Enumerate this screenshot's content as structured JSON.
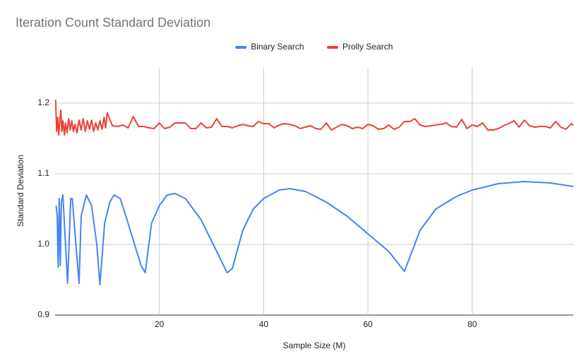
{
  "chart_data": {
    "type": "line",
    "title": "Iteration Count Standard Deviation",
    "x_label": "Sample Size (M)",
    "y_label": "Standard Deviation",
    "xlim": [
      0,
      99.4
    ],
    "ylim": [
      0.9,
      1.25
    ],
    "xticks": [
      20,
      40,
      60,
      80
    ],
    "yticks": [
      0.9,
      {
        "value": 1.0,
        "label": "1.0"
      },
      1.1,
      1.2
    ],
    "grid": true,
    "legend": "top",
    "series": [
      {
        "name": "Binary Search",
        "color": "#4285f4",
        "x": [
          0.2,
          0.4,
          0.6,
          0.8,
          1.0,
          1.2,
          1.5,
          2.0,
          2.4,
          3.0,
          3.3,
          4.0,
          4.6,
          5.0,
          6.0,
          7.0,
          8.0,
          8.6,
          9.5,
          10.5,
          11.3,
          12.5,
          14,
          16.5,
          17.3,
          18.5,
          20,
          21.5,
          23,
          25,
          28,
          31,
          33,
          34,
          36,
          38,
          40,
          43,
          45,
          48,
          52,
          56,
          60,
          64,
          67,
          70,
          73,
          77,
          80,
          85,
          90,
          95,
          99.4
        ],
        "values": [
          1.055,
          1.04,
          0.968,
          1.065,
          0.97,
          1.06,
          1.07,
          1.0,
          0.945,
          1.065,
          1.065,
          1.0,
          0.945,
          1.04,
          1.07,
          1.055,
          1.0,
          0.943,
          1.03,
          1.06,
          1.07,
          1.065,
          1.03,
          0.97,
          0.96,
          1.03,
          1.055,
          1.07,
          1.072,
          1.065,
          1.035,
          0.99,
          0.96,
          0.966,
          1.02,
          1.05,
          1.065,
          1.077,
          1.079,
          1.075,
          1.06,
          1.04,
          1.015,
          0.99,
          0.962,
          1.02,
          1.05,
          1.068,
          1.077,
          1.086,
          1.089,
          1.087,
          1.082
        ]
      },
      {
        "name": "Prolly Search",
        "color": "#ea4335",
        "x": [
          0.1,
          0.3,
          0.5,
          0.7,
          0.9,
          1.1,
          1.3,
          1.5,
          1.8,
          2.0,
          2.3,
          2.6,
          2.9,
          3.2,
          3.5,
          3.8,
          4.2,
          4.6,
          5.0,
          5.4,
          5.8,
          6.2,
          6.6,
          7.0,
          7.4,
          7.8,
          8.2,
          8.6,
          9.0,
          9.4,
          9.7,
          10,
          11,
          12,
          13,
          14,
          15,
          16,
          17,
          18,
          19,
          20,
          21,
          22,
          23,
          24,
          25,
          26,
          27,
          28,
          29,
          30,
          31,
          32,
          33,
          34,
          35,
          36,
          37,
          38,
          39,
          40,
          41,
          42,
          43,
          44,
          45,
          46,
          47,
          48,
          49,
          50,
          51,
          52,
          53,
          54,
          55,
          56,
          57,
          58,
          59,
          60,
          61,
          62,
          63,
          64,
          65,
          66,
          67,
          68,
          69,
          70,
          71,
          72,
          73,
          74,
          75,
          76,
          77,
          78,
          79,
          80,
          81,
          82,
          83,
          84,
          85,
          86,
          87,
          88,
          89,
          90,
          91,
          92,
          93,
          94,
          95,
          96,
          97,
          98,
          99,
          99.4
        ],
        "values": [
          1.205,
          1.16,
          1.18,
          1.155,
          1.175,
          1.19,
          1.16,
          1.175,
          1.155,
          1.172,
          1.158,
          1.178,
          1.162,
          1.175,
          1.16,
          1.17,
          1.158,
          1.176,
          1.162,
          1.178,
          1.16,
          1.175,
          1.163,
          1.176,
          1.16,
          1.172,
          1.162,
          1.175,
          1.163,
          1.18,
          1.165,
          1.186,
          1.168,
          1.167,
          1.169,
          1.165,
          1.181,
          1.167,
          1.167,
          1.165,
          1.164,
          1.172,
          1.164,
          1.166,
          1.172,
          1.172,
          1.172,
          1.164,
          1.164,
          1.172,
          1.165,
          1.166,
          1.178,
          1.167,
          1.167,
          1.165,
          1.168,
          1.17,
          1.168,
          1.167,
          1.174,
          1.171,
          1.171,
          1.165,
          1.169,
          1.171,
          1.17,
          1.168,
          1.164,
          1.166,
          1.168,
          1.164,
          1.163,
          1.172,
          1.162,
          1.166,
          1.17,
          1.168,
          1.164,
          1.166,
          1.164,
          1.17,
          1.168,
          1.163,
          1.164,
          1.169,
          1.163,
          1.166,
          1.174,
          1.174,
          1.178,
          1.169,
          1.167,
          1.168,
          1.169,
          1.17,
          1.172,
          1.167,
          1.166,
          1.177,
          1.164,
          1.169,
          1.167,
          1.172,
          1.162,
          1.162,
          1.164,
          1.168,
          1.171,
          1.175,
          1.166,
          1.176,
          1.168,
          1.166,
          1.167,
          1.167,
          1.165,
          1.174,
          1.166,
          1.163,
          1.171,
          1.169
        ]
      }
    ]
  }
}
